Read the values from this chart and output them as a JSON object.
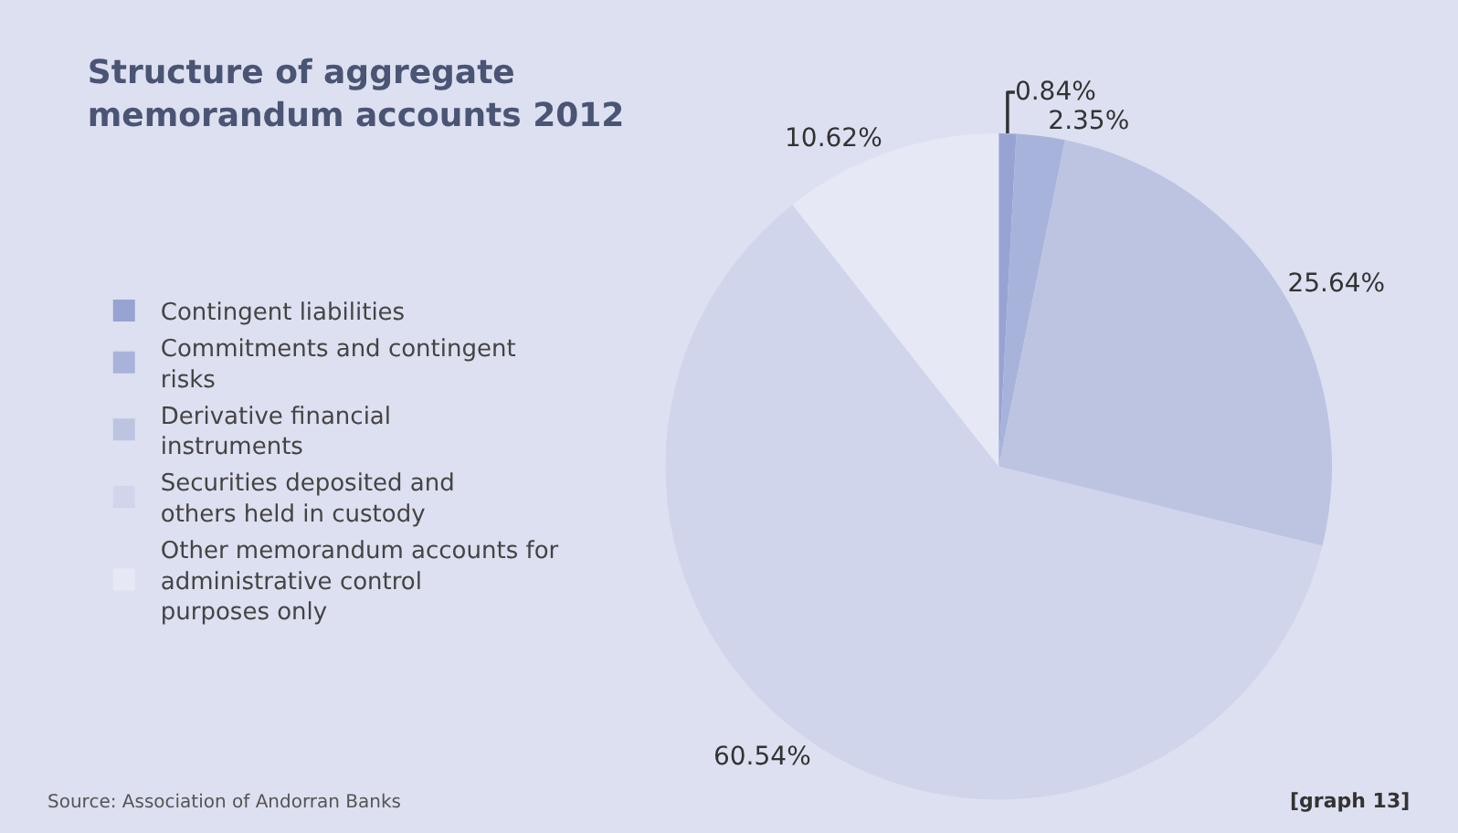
{
  "chart_data": {
    "type": "pie",
    "title": "Structure of aggregate memorandum accounts 2012",
    "categories": [
      "Contingent liabilities",
      "Commitments and contingent risks",
      "Derivative financial instruments",
      "Securities deposited and others held in custody",
      "Other memorandum accounts for administrative control purposes only"
    ],
    "values": [
      0.84,
      2.35,
      25.64,
      60.54,
      10.62
    ],
    "value_labels": [
      "0.84%",
      "2.35%",
      "25.64%",
      "60.54%",
      "10.62%"
    ],
    "colors": [
      "#97a3d3",
      "#a8b3db",
      "#bcc4e2",
      "#d0d5eb",
      "#e6e8f5"
    ],
    "legend": "left",
    "annotations": [
      "Source: Association of Andorran Banks",
      "[graph 13]"
    ]
  }
}
